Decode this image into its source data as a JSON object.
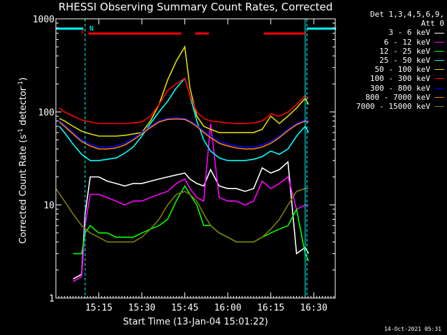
{
  "title": "RHESSI Observing Summary Count Rates, Corrected",
  "xlabel": "Start Time (13-Jan-04 15:01:22)",
  "ylabel_main": "Corrected Count Rate (s",
  "ylabel_sup1": "-1",
  "ylabel_mid": " detector",
  "ylabel_sup2": "-1",
  "ylabel_end": ")",
  "legend_head1": "Det 1,3,4,5,6,9,",
  "legend_head2": "Att 0",
  "timestamp": "14-Oct-2021 05:31",
  "flags": {
    "f_label": "F",
    "n_label": "N",
    "f_color": "#ff0000",
    "n_color": "#00ffff"
  },
  "chart_data": {
    "type": "line",
    "title": "RHESSI Observing Summary Count Rates, Corrected",
    "xlabel": "Start Time (13-Jan-04 15:01:22)",
    "ylabel": "Corrected Count Rate (s^-1 detector^-1)",
    "yscale": "log",
    "xlim_minutes": [
      15.0,
      16.625
    ],
    "ylim": [
      1,
      1000
    ],
    "xticks": [
      {
        "t": 15.25,
        "label": "15:15"
      },
      {
        "t": 15.5,
        "label": "15:30"
      },
      {
        "t": 15.75,
        "label": "15:45"
      },
      {
        "t": 16.0,
        "label": "16:00"
      },
      {
        "t": 16.25,
        "label": "16:15"
      },
      {
        "t": 16.5,
        "label": "16:30"
      }
    ],
    "yticks": [
      {
        "v": 1,
        "label": "1"
      },
      {
        "v": 10,
        "label": "10"
      },
      {
        "v": 100,
        "label": "100"
      },
      {
        "v": 1000,
        "label": "1000"
      }
    ],
    "night_boundaries": [
      15.17,
      16.46
    ],
    "saa_boundaries": [
      16.45
    ],
    "flag_segments": [
      {
        "start": 15.19,
        "end": 15.73
      },
      {
        "start": 15.81,
        "end": 15.89
      },
      {
        "start": 16.21,
        "end": 16.45
      }
    ],
    "night_flag_segments": [
      {
        "start": 15.0,
        "end": 15.16
      },
      {
        "start": 16.46,
        "end": 16.63
      }
    ],
    "series": [
      {
        "name": "3 - 6 keV",
        "color": "#ffffff",
        "x": [
          15.1,
          15.15,
          15.17,
          15.2,
          15.25,
          15.3,
          15.35,
          15.4,
          15.45,
          15.5,
          15.55,
          15.6,
          15.65,
          15.7,
          15.75,
          15.78,
          15.82,
          15.86,
          15.9,
          15.95,
          16.0,
          16.05,
          16.1,
          16.15,
          16.2,
          16.25,
          16.3,
          16.35,
          16.4,
          16.45,
          16.47
        ],
        "y": [
          1.6,
          1.8,
          8,
          20,
          20,
          18,
          17,
          16,
          17,
          17,
          18,
          19,
          20,
          21,
          22,
          19,
          17,
          16,
          24,
          16,
          15,
          15,
          14,
          15,
          25,
          22,
          24,
          29,
          3,
          3.5,
          3
        ]
      },
      {
        "name": "6 - 12 keV",
        "color": "#ff00ff",
        "x": [
          15.1,
          15.15,
          15.17,
          15.2,
          15.25,
          15.3,
          15.35,
          15.4,
          15.45,
          15.5,
          15.55,
          15.6,
          15.65,
          15.7,
          15.75,
          15.78,
          15.82,
          15.86,
          15.9,
          15.95,
          16.0,
          16.05,
          16.1,
          16.15,
          16.2,
          16.25,
          16.3,
          16.35,
          16.4,
          16.45,
          16.47
        ],
        "y": [
          1.5,
          1.7,
          6,
          13,
          13,
          12,
          11,
          10,
          11,
          11,
          12,
          13,
          14,
          17,
          19,
          15,
          12,
          11,
          75,
          12,
          11,
          11,
          10,
          11,
          18,
          15,
          17,
          20,
          9,
          10,
          10
        ]
      },
      {
        "name": "12 - 25 keV",
        "color": "#00ff00",
        "x": [
          15.1,
          15.15,
          15.17,
          15.2,
          15.25,
          15.3,
          15.35,
          15.4,
          15.45,
          15.5,
          15.55,
          15.6,
          15.65,
          15.7,
          15.75,
          15.78,
          15.82,
          15.86,
          15.9,
          15.95,
          16.0,
          16.05,
          16.1,
          16.15,
          16.2,
          16.25,
          16.3,
          16.35,
          16.4,
          16.45,
          16.47
        ],
        "y": [
          3,
          3,
          5,
          6,
          5,
          5,
          4.5,
          4.5,
          4.5,
          5,
          5.5,
          6,
          7,
          11,
          16,
          13,
          10,
          6,
          6,
          5,
          4.5,
          4,
          4,
          4,
          4.5,
          5,
          5.5,
          6,
          9,
          3,
          2.5
        ]
      },
      {
        "name": "25 - 50 keV",
        "color": "#00ffff",
        "x": [
          15.02,
          15.05,
          15.1,
          15.15,
          15.2,
          15.25,
          15.3,
          15.35,
          15.4,
          15.45,
          15.5,
          15.55,
          15.6,
          15.65,
          15.7,
          15.75,
          15.78,
          15.82,
          15.86,
          15.9,
          15.95,
          16.0,
          16.05,
          16.1,
          16.15,
          16.2,
          16.25,
          16.3,
          16.35,
          16.4,
          16.45,
          16.47
        ],
        "y": [
          70,
          60,
          45,
          35,
          30,
          30,
          31,
          32,
          36,
          42,
          55,
          75,
          100,
          130,
          180,
          230,
          150,
          80,
          50,
          38,
          32,
          30,
          30,
          30,
          31,
          33,
          38,
          35,
          40,
          55,
          70,
          60
        ]
      },
      {
        "name": "50 - 100 keV",
        "color": "#dddd00",
        "x": [
          15.02,
          15.05,
          15.1,
          15.15,
          15.2,
          15.25,
          15.3,
          15.35,
          15.4,
          15.45,
          15.5,
          15.55,
          15.6,
          15.65,
          15.7,
          15.75,
          15.78,
          15.82,
          15.86,
          15.9,
          15.95,
          16.0,
          16.05,
          16.1,
          16.15,
          16.2,
          16.25,
          16.3,
          16.35,
          16.4,
          16.45,
          16.47
        ],
        "y": [
          85,
          80,
          70,
          62,
          58,
          55,
          55,
          55,
          56,
          58,
          60,
          80,
          120,
          220,
          350,
          500,
          180,
          90,
          70,
          65,
          60,
          60,
          60,
          60,
          60,
          65,
          90,
          75,
          90,
          110,
          140,
          120
        ]
      },
      {
        "name": "100 - 300 keV",
        "color": "#ff0000",
        "x": [
          15.02,
          15.05,
          15.1,
          15.15,
          15.2,
          15.25,
          15.3,
          15.35,
          15.4,
          15.45,
          15.5,
          15.55,
          15.6,
          15.65,
          15.7,
          15.75,
          15.78,
          15.82,
          15.86,
          15.9,
          15.95,
          16.0,
          16.05,
          16.1,
          16.15,
          16.2,
          16.25,
          16.3,
          16.35,
          16.4,
          16.45,
          16.47
        ],
        "y": [
          110,
          100,
          90,
          82,
          78,
          75,
          75,
          75,
          75,
          76,
          78,
          90,
          120,
          170,
          200,
          230,
          150,
          100,
          85,
          80,
          78,
          76,
          75,
          75,
          76,
          80,
          95,
          90,
          100,
          120,
          150,
          140
        ]
      },
      {
        "name": "300 - 800 keV",
        "color": "#0000ff",
        "x": [
          15.02,
          15.05,
          15.1,
          15.15,
          15.2,
          15.25,
          15.3,
          15.35,
          15.4,
          15.45,
          15.5,
          15.55,
          15.6,
          15.65,
          15.7,
          15.75,
          15.78,
          15.82,
          15.86,
          15.9,
          15.95,
          16.0,
          16.05,
          16.1,
          16.15,
          16.2,
          16.25,
          16.3,
          16.35,
          16.4,
          16.45,
          16.47
        ],
        "y": [
          80,
          72,
          60,
          50,
          45,
          42,
          42,
          43,
          46,
          52,
          60,
          70,
          80,
          85,
          86,
          85,
          80,
          72,
          62,
          55,
          48,
          45,
          43,
          42,
          42,
          44,
          48,
          55,
          65,
          75,
          82,
          80
        ]
      },
      {
        "name": "800 - 7000 keV",
        "color": "#ff8000",
        "x": [
          15.02,
          15.05,
          15.1,
          15.15,
          15.2,
          15.25,
          15.3,
          15.35,
          15.4,
          15.45,
          15.5,
          15.55,
          15.6,
          15.65,
          15.7,
          15.75,
          15.78,
          15.82,
          15.86,
          15.9,
          15.95,
          16.0,
          16.05,
          16.1,
          16.15,
          16.2,
          16.25,
          16.3,
          16.35,
          16.4,
          16.45,
          16.47
        ],
        "y": [
          78,
          70,
          58,
          48,
          43,
          40,
          40,
          41,
          44,
          50,
          58,
          68,
          78,
          83,
          84,
          83,
          78,
          70,
          60,
          53,
          46,
          43,
          41,
          40,
          40,
          42,
          46,
          53,
          63,
          73,
          80,
          78
        ]
      },
      {
        "name": "7000 - 15000 keV",
        "color": "#808000",
        "x": [
          15.0,
          15.05,
          15.1,
          15.15,
          15.2,
          15.25,
          15.3,
          15.35,
          15.4,
          15.45,
          15.5,
          15.55,
          15.6,
          15.65,
          15.7,
          15.75,
          15.78,
          15.82,
          15.86,
          15.9,
          15.95,
          16.0,
          16.05,
          16.1,
          16.15,
          16.2,
          16.25,
          16.3,
          16.35,
          16.4,
          16.45,
          16.47
        ],
        "y": [
          15,
          11,
          8,
          6,
          5,
          4.5,
          4,
          4,
          4,
          4,
          4.5,
          5.5,
          7,
          10,
          13,
          14,
          13,
          11,
          8,
          6,
          5,
          4.5,
          4,
          4,
          4,
          4.5,
          5.5,
          7,
          10,
          14,
          15,
          15
        ]
      }
    ]
  }
}
